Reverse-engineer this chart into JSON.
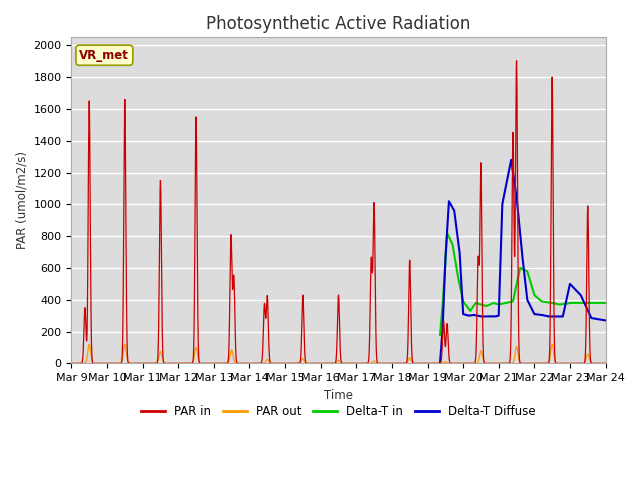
{
  "title": "Photosynthetic Active Radiation",
  "ylabel": "PAR (umol/m2/s)",
  "xlabel": "Time",
  "annotation": "VR_met",
  "ylim": [
    0,
    2050
  ],
  "background_color": "#dcdcdc",
  "legend_entries": [
    "PAR in",
    "PAR out",
    "Delta-T in",
    "Delta-T Diffuse"
  ],
  "legend_colors": [
    "#cc0000",
    "#ff9900",
    "#00cc00",
    "#0000cc"
  ],
  "xtick_labels": [
    "Mar 9",
    "Mar 10",
    "Mar 11",
    "Mar 12",
    "Mar 13",
    "Mar 14",
    "Mar 15",
    "Mar 16",
    "Mar 17",
    "Mar 18",
    "Mar 19",
    "Mar 20",
    "Mar 21",
    "Mar 22",
    "Mar 23",
    "Mar 24"
  ],
  "title_fontsize": 12,
  "tick_fontsize": 8
}
